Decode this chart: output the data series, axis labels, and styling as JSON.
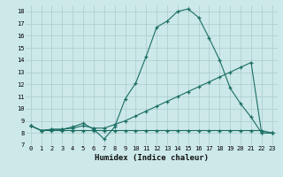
{
  "xlabel": "Humidex (Indice chaleur)",
  "bg_color": "#cce8e8",
  "grid_color": "#aacccc",
  "line_color": "#1a6e64",
  "xlim": [
    -0.5,
    23.5
  ],
  "ylim": [
    7,
    18.5
  ],
  "xticks": [
    0,
    1,
    2,
    3,
    4,
    5,
    6,
    7,
    8,
    9,
    10,
    11,
    12,
    13,
    14,
    15,
    16,
    17,
    18,
    19,
    20,
    21,
    22,
    23
  ],
  "yticks": [
    7,
    8,
    9,
    10,
    11,
    12,
    13,
    14,
    15,
    16,
    17,
    18
  ],
  "line1_x": [
    0,
    1,
    2,
    3,
    4,
    5,
    6,
    7,
    8,
    9,
    10,
    11,
    12,
    13,
    14,
    15,
    16,
    17,
    18,
    19,
    20,
    21,
    22,
    23
  ],
  "line1_y": [
    8.6,
    8.2,
    8.3,
    8.3,
    8.5,
    8.8,
    8.3,
    7.5,
    8.5,
    10.8,
    12.1,
    14.3,
    16.7,
    17.2,
    18.0,
    18.2,
    17.5,
    15.8,
    14.0,
    11.7,
    10.4,
    9.3,
    8.0,
    8.0
  ],
  "line2_x": [
    0,
    1,
    2,
    3,
    4,
    5,
    6,
    7,
    8,
    9,
    10,
    11,
    12,
    13,
    14,
    15,
    16,
    17,
    18,
    19,
    20,
    21,
    22,
    23
  ],
  "line2_y": [
    8.6,
    8.2,
    8.3,
    8.3,
    8.4,
    8.6,
    8.4,
    8.4,
    8.7,
    9.0,
    9.4,
    9.8,
    10.2,
    10.6,
    11.0,
    11.4,
    11.8,
    12.2,
    12.6,
    13.0,
    13.4,
    13.8,
    8.0,
    8.0
  ],
  "line3_x": [
    0,
    1,
    2,
    3,
    4,
    5,
    6,
    7,
    8,
    9,
    10,
    11,
    12,
    13,
    14,
    15,
    16,
    17,
    18,
    19,
    20,
    21,
    22,
    23
  ],
  "line3_y": [
    8.6,
    8.2,
    8.2,
    8.2,
    8.2,
    8.2,
    8.2,
    8.2,
    8.2,
    8.2,
    8.2,
    8.2,
    8.2,
    8.2,
    8.2,
    8.2,
    8.2,
    8.2,
    8.2,
    8.2,
    8.2,
    8.2,
    8.2,
    8.0
  ],
  "tick_fontsize": 5.0,
  "xlabel_fontsize": 6.5
}
